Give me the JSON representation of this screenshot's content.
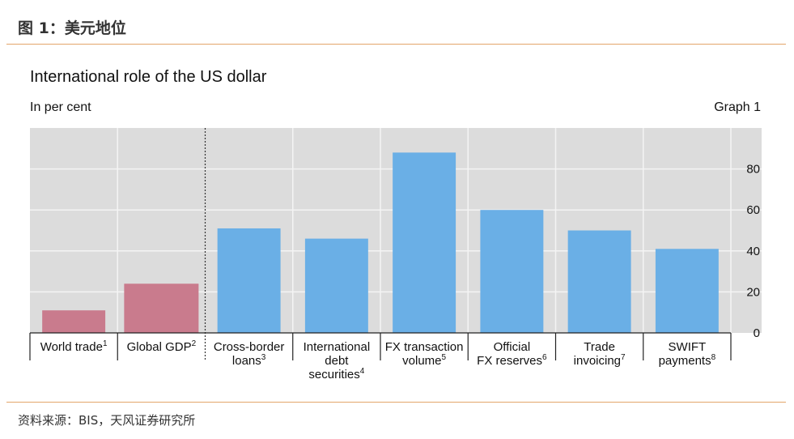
{
  "figure": {
    "caption": "图 1：美元地位",
    "source": "资料来源：BIS，天风证券研究所"
  },
  "chart_data": {
    "type": "bar",
    "title": "International role of the US dollar",
    "unit_label": "In per cent",
    "graph_label": "Graph 1",
    "ylim": [
      0,
      100
    ],
    "yticks": [
      0,
      20,
      40,
      60,
      80
    ],
    "grid": true,
    "categories": [
      {
        "lines": [
          "World trade"
        ],
        "note": "1"
      },
      {
        "lines": [
          "Global GDP"
        ],
        "note": "2"
      },
      {
        "lines": [
          "Cross-border",
          "loans"
        ],
        "note": "3"
      },
      {
        "lines": [
          "International",
          "debt",
          "securities"
        ],
        "note": "4"
      },
      {
        "lines": [
          "FX transaction",
          "volume"
        ],
        "note": "5"
      },
      {
        "lines": [
          "Official",
          "FX reserves"
        ],
        "note": "6"
      },
      {
        "lines": [
          "Trade",
          "invoicing"
        ],
        "note": "7"
      },
      {
        "lines": [
          "SWIFT",
          "payments"
        ],
        "note": "8"
      }
    ],
    "values": [
      11,
      24,
      51,
      46,
      88,
      60,
      50,
      41
    ],
    "colors": [
      "#c97b8d",
      "#c97b8d",
      "#6aafe6",
      "#6aafe6",
      "#6aafe6",
      "#6aafe6",
      "#6aafe6",
      "#6aafe6"
    ],
    "background_color": "#dcdcdc",
    "grid_color": "#f4f4f4"
  }
}
